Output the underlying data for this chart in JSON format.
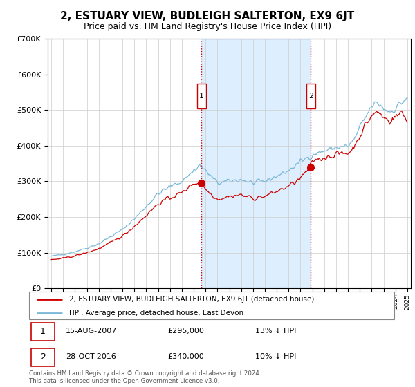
{
  "title": "2, ESTUARY VIEW, BUDLEIGH SALTERTON, EX9 6JT",
  "subtitle": "Price paid vs. HM Land Registry's House Price Index (HPI)",
  "title_fontsize": 11,
  "subtitle_fontsize": 9,
  "purchase1_price": 295000,
  "purchase1_year": 2007.625,
  "purchase2_price": 340000,
  "purchase2_year": 2016.83,
  "legend_line1": "2, ESTUARY VIEW, BUDLEIGH SALTERTON, EX9 6JT (detached house)",
  "legend_line2": "HPI: Average price, detached house, East Devon",
  "footer": "Contains HM Land Registry data © Crown copyright and database right 2024.\nThis data is licensed under the Open Government Licence v3.0.",
  "hpi_color": "#7ab8d9",
  "price_color": "#cc0000",
  "vline_color": "#cc0000",
  "shade_color": "#ddeeff",
  "bg_color": "#ffffff",
  "ylim": [
    0,
    700000
  ],
  "xlim_start": 1994.7,
  "xlim_end": 2025.3
}
